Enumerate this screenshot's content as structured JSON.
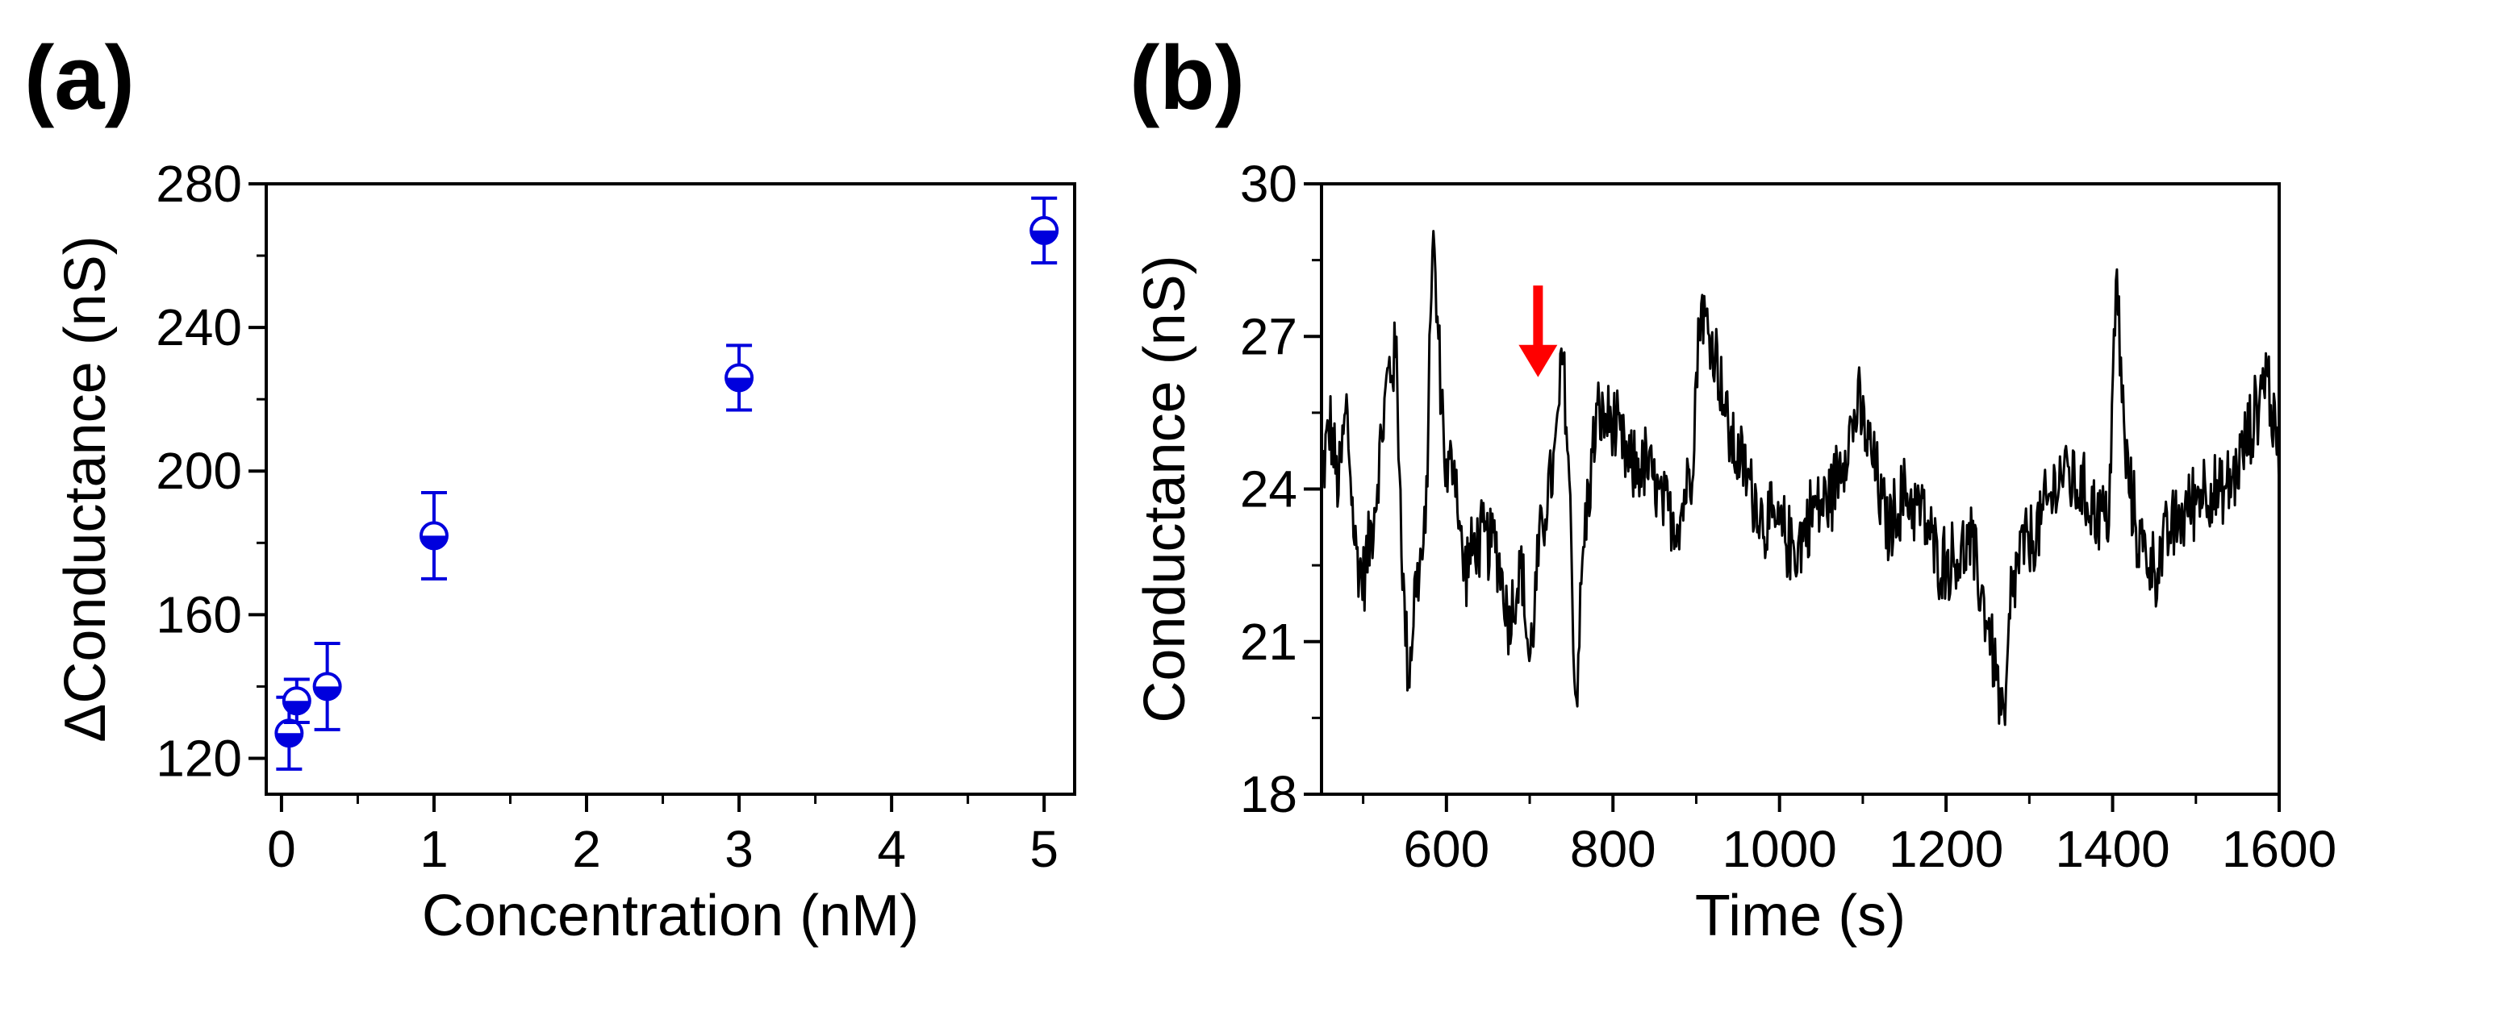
{
  "chart_data": [
    {
      "panel": "(a)",
      "type": "scatter",
      "xlabel": "Concentration (nM)",
      "ylabel": "ΔConductance (nS)",
      "xlim": [
        -0.1,
        5.2
      ],
      "ylim": [
        110,
        280
      ],
      "xticks": [
        0,
        1,
        2,
        3,
        4,
        5
      ],
      "yticks": [
        120,
        160,
        200,
        240,
        280
      ],
      "color": "#0000dd",
      "series": [
        {
          "name": "ΔConductance",
          "x": [
            0.05,
            0.1,
            0.3,
            1,
            3,
            5
          ],
          "y": [
            127,
            136,
            140,
            182,
            226,
            267
          ],
          "err": [
            10,
            6,
            12,
            12,
            9,
            9
          ]
        }
      ]
    },
    {
      "panel": "(b)",
      "type": "line",
      "xlabel": "Time (s)",
      "ylabel": "Conductance (nS)",
      "xlim": [
        450,
        1600
      ],
      "ylim": [
        18,
        30
      ],
      "xticks": [
        600,
        800,
        1000,
        1200,
        1400,
        1600
      ],
      "yticks": [
        18,
        21,
        24,
        27,
        30
      ],
      "color": "#000000",
      "annotation": {
        "type": "arrow",
        "x": 710,
        "y_tip": 26.2,
        "y_tail": 28.0,
        "color": "#ff0000"
      },
      "series": [
        {
          "name": "Conductance",
          "keypoints": [
            [
              450,
              24.2
            ],
            [
              460,
              25.3
            ],
            [
              470,
              24.0
            ],
            [
              480,
              25.6
            ],
            [
              490,
              22.9
            ],
            [
              500,
              22.2
            ],
            [
              510,
              23.2
            ],
            [
              520,
              24.6
            ],
            [
              530,
              26.3
            ],
            [
              540,
              26.6
            ],
            [
              548,
              22.0
            ],
            [
              555,
              20.3
            ],
            [
              562,
              22.0
            ],
            [
              575,
              23.0
            ],
            [
              583,
              29.1
            ],
            [
              590,
              27.0
            ],
            [
              600,
              24.2
            ],
            [
              610,
              24.6
            ],
            [
              620,
              22.4
            ],
            [
              640,
              23.0
            ],
            [
              660,
              22.9
            ],
            [
              675,
              21.4
            ],
            [
              690,
              22.5
            ],
            [
              700,
              20.5
            ],
            [
              710,
              22.6
            ],
            [
              720,
              23.8
            ],
            [
              730,
              24.5
            ],
            [
              740,
              26.7
            ],
            [
              748,
              24.0
            ],
            [
              755,
              19.7
            ],
            [
              765,
              23.0
            ],
            [
              780,
              25.4
            ],
            [
              800,
              25.3
            ],
            [
              820,
              24.4
            ],
            [
              840,
              24.5
            ],
            [
              860,
              23.6
            ],
            [
              880,
              23.4
            ],
            [
              895,
              24.6
            ],
            [
              905,
              27.7
            ],
            [
              915,
              27.0
            ],
            [
              925,
              26.6
            ],
            [
              940,
              25.0
            ],
            [
              960,
              24.3
            ],
            [
              980,
              23.4
            ],
            [
              1000,
              23.2
            ],
            [
              1020,
              22.8
            ],
            [
              1040,
              23.6
            ],
            [
              1060,
              23.8
            ],
            [
              1080,
              24.9
            ],
            [
              1095,
              25.6
            ],
            [
              1110,
              24.7
            ],
            [
              1130,
              23.2
            ],
            [
              1150,
              23.9
            ],
            [
              1170,
              23.6
            ],
            [
              1190,
              22.6
            ],
            [
              1210,
              22.6
            ],
            [
              1230,
              22.9
            ],
            [
              1250,
              21.4
            ],
            [
              1262,
              20.2
            ],
            [
              1270,
              19.1
            ],
            [
              1278,
              21.9
            ],
            [
              1290,
              22.8
            ],
            [
              1305,
              23.0
            ],
            [
              1320,
              23.6
            ],
            [
              1340,
              24.4
            ],
            [
              1360,
              24.0
            ],
            [
              1380,
              23.6
            ],
            [
              1395,
              23.4
            ],
            [
              1405,
              28.2
            ],
            [
              1415,
              24.6
            ],
            [
              1430,
              23.1
            ],
            [
              1450,
              22.4
            ],
            [
              1470,
              23.2
            ],
            [
              1490,
              23.6
            ],
            [
              1510,
              24.1
            ],
            [
              1530,
              23.8
            ],
            [
              1550,
              24.4
            ],
            [
              1570,
              25.4
            ],
            [
              1585,
              26.4
            ],
            [
              1600,
              24.4
            ]
          ],
          "noise_amplitude": 0.9
        }
      ]
    }
  ]
}
